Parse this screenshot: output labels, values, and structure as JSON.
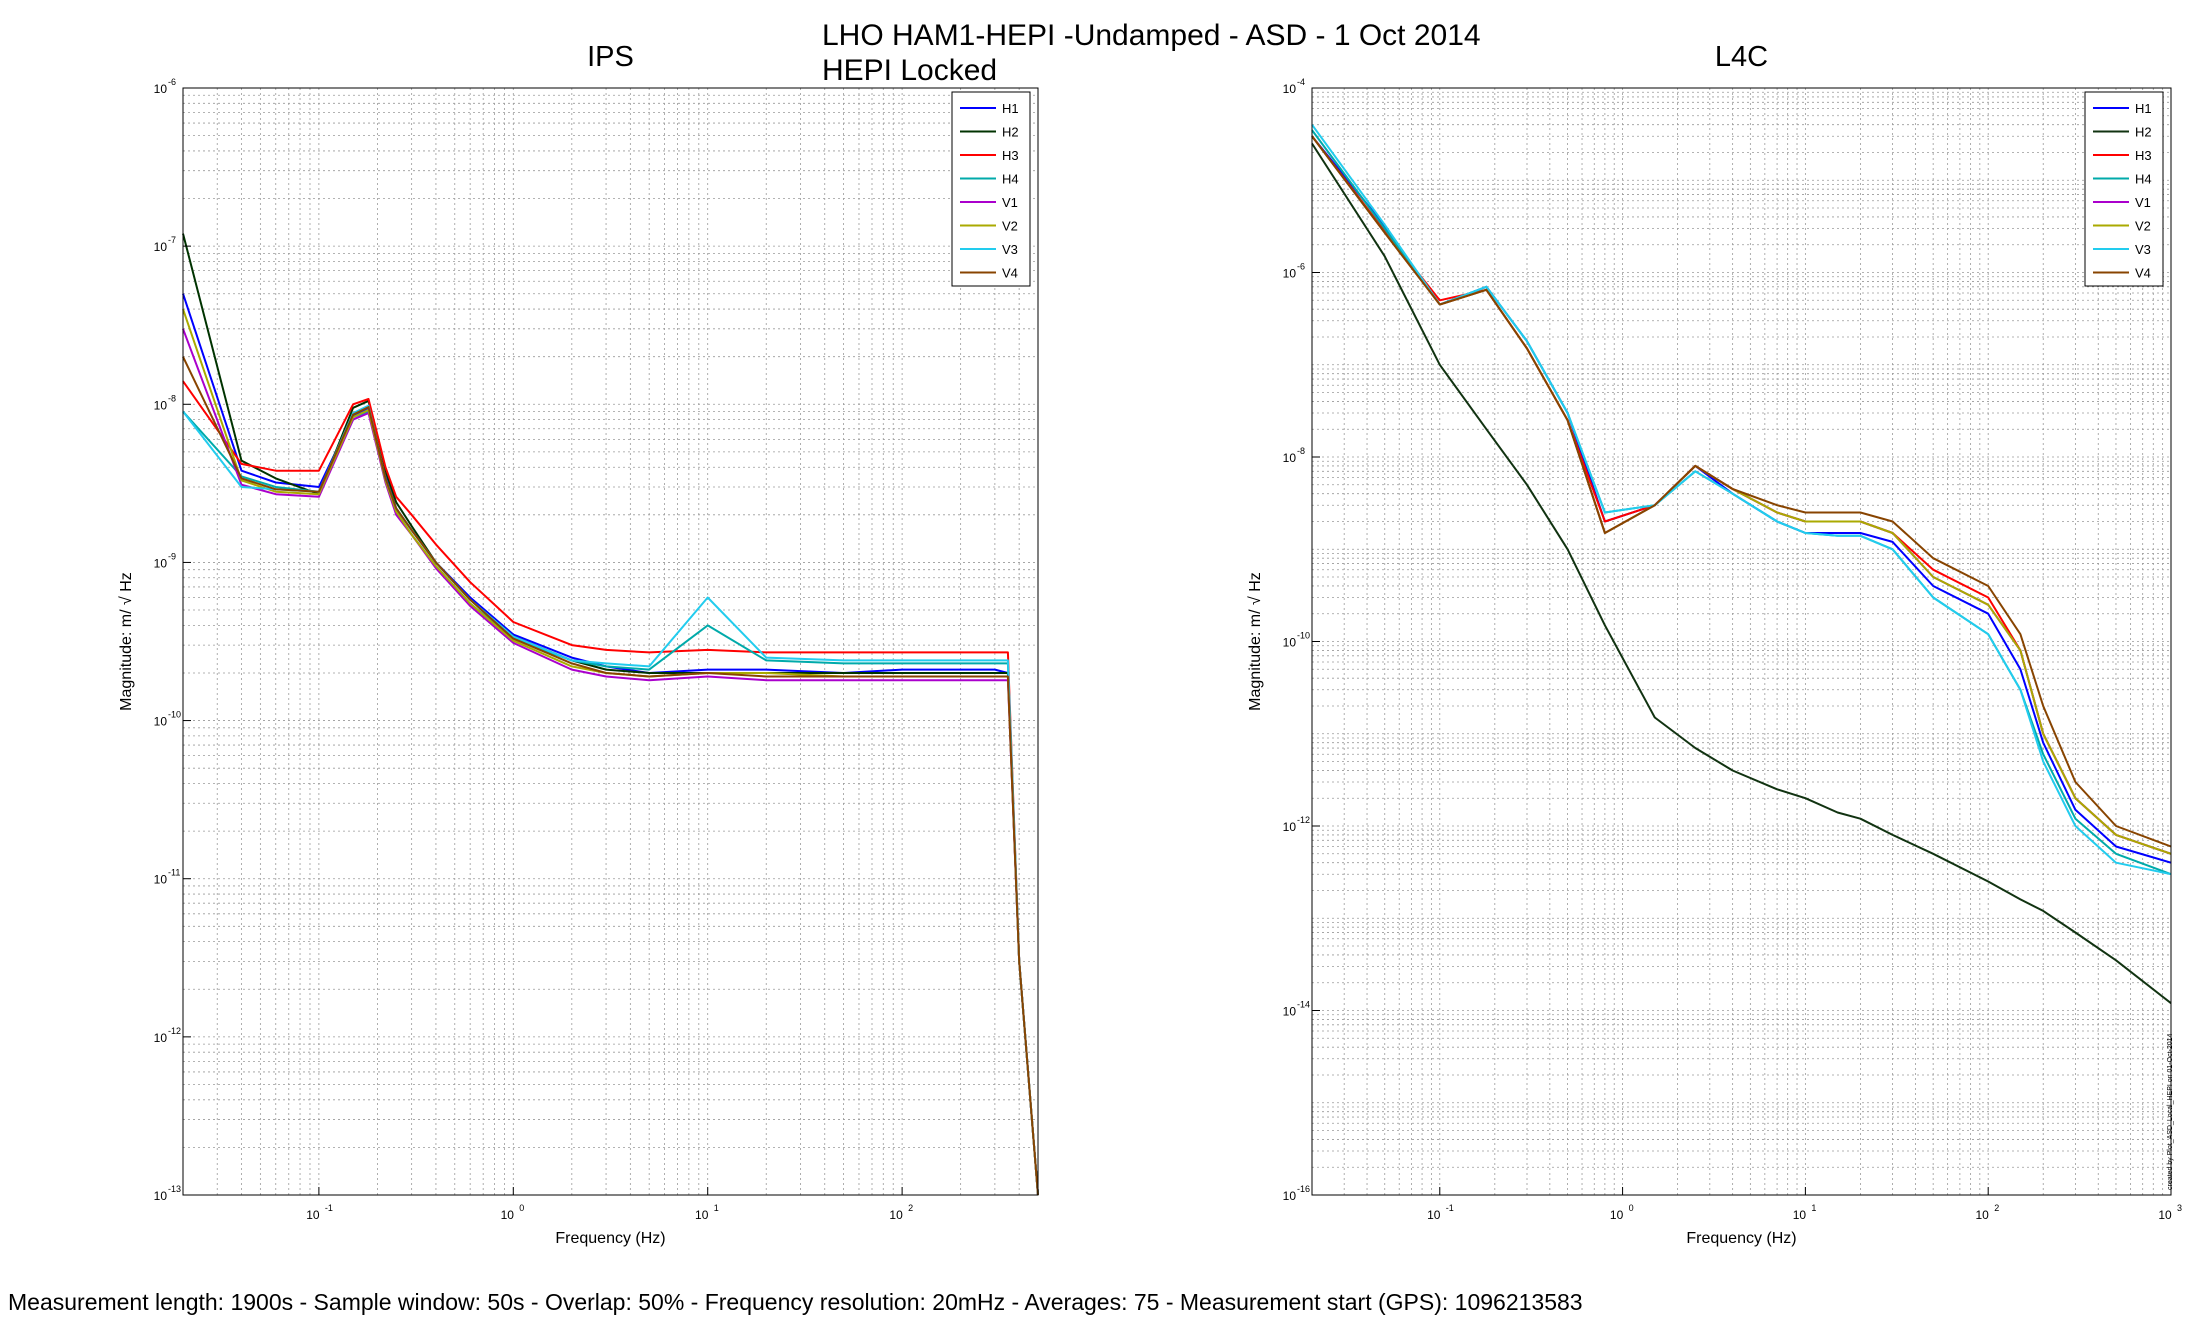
{
  "figure": {
    "title_line1": "LHO HAM1-HEPI -Undamped - ASD - 1 Oct 2014",
    "title_line2": "HEPI Locked",
    "footer": "Measurement length: 1900s - Sample window: 50s - Overlap: 50% - Frequency resolution: 20mHz - Averages: 75 - Measurement start (GPS): 1096213583",
    "side_note": "created by Plot_ASD_Local_HEPI on 01-Oct-2014"
  },
  "chart_data": [
    {
      "type": "line",
      "title": "IPS",
      "xlabel": "Frequency (Hz)",
      "ylabel": "Magnitude: m/ √ Hz",
      "xscale": "log",
      "yscale": "log",
      "xlim": [
        0.02,
        500
      ],
      "ylim": [
        1e-13,
        1e-06
      ],
      "grid": true,
      "legend_position": "top-right",
      "x": [
        0.02,
        0.04,
        0.06,
        0.1,
        0.15,
        0.18,
        0.22,
        0.25,
        0.3,
        0.4,
        0.6,
        1,
        2,
        3,
        5,
        10,
        20,
        50,
        100,
        200,
        300,
        350,
        400,
        450,
        500
      ],
      "series": [
        {
          "name": "H1",
          "color": "#0000ff",
          "values": [
            5e-08,
            3.8e-09,
            3.2e-09,
            3e-09,
            8.5e-09,
            9.5e-09,
            3.5e-09,
            2.2e-09,
            1.6e-09,
            1e-09,
            6e-10,
            3.5e-10,
            2.5e-10,
            2.2e-10,
            2e-10,
            2.1e-10,
            2.1e-10,
            2e-10,
            2.1e-10,
            2.1e-10,
            2.1e-10,
            2e-10,
            3e-12,
            5e-13,
            1e-13
          ]
        },
        {
          "name": "H2",
          "color": "#003300",
          "values": [
            1.2e-07,
            4.4e-09,
            3.4e-09,
            2.7e-09,
            9.5e-09,
            1.05e-08,
            3.8e-09,
            2.4e-09,
            1.7e-09,
            1e-09,
            5.8e-10,
            3.4e-10,
            2.4e-10,
            2.1e-10,
            2e-10,
            2e-10,
            2e-10,
            2e-10,
            2e-10,
            2e-10,
            2e-10,
            2e-10,
            3e-12,
            5e-13,
            1e-13
          ]
        },
        {
          "name": "H3",
          "color": "#ff0000",
          "values": [
            1.4e-08,
            4.2e-09,
            3.8e-09,
            3.8e-09,
            1e-08,
            1.08e-08,
            4e-09,
            2.6e-09,
            2e-09,
            1.3e-09,
            7.5e-10,
            4.2e-10,
            3e-10,
            2.8e-10,
            2.7e-10,
            2.8e-10,
            2.7e-10,
            2.7e-10,
            2.7e-10,
            2.7e-10,
            2.7e-10,
            2.7e-10,
            3e-12,
            5e-13,
            1e-13
          ]
        },
        {
          "name": "H4",
          "color": "#00aaaa",
          "values": [
            9e-09,
            3.5e-09,
            3e-09,
            2.8e-09,
            8e-09,
            9e-09,
            3.3e-09,
            2.1e-09,
            1.5e-09,
            9.5e-10,
            5.5e-10,
            3.3e-10,
            2.4e-10,
            2.2e-10,
            2.1e-10,
            4e-10,
            2.4e-10,
            2.3e-10,
            2.3e-10,
            2.3e-10,
            2.3e-10,
            2.3e-10,
            3e-12,
            5e-13,
            1e-13
          ]
        },
        {
          "name": "V1",
          "color": "#aa00cc",
          "values": [
            3e-08,
            3.1e-09,
            2.7e-09,
            2.6e-09,
            8e-09,
            8.8e-09,
            3.2e-09,
            2e-09,
            1.5e-09,
            9.2e-10,
            5.3e-10,
            3.1e-10,
            2.1e-10,
            1.9e-10,
            1.8e-10,
            1.9e-10,
            1.8e-10,
            1.8e-10,
            1.8e-10,
            1.8e-10,
            1.8e-10,
            1.8e-10,
            3e-12,
            5e-13,
            1e-13
          ]
        },
        {
          "name": "V2",
          "color": "#aaaa00",
          "values": [
            4e-08,
            3.3e-09,
            2.8e-09,
            2.7e-09,
            8.3e-09,
            9.2e-09,
            3.3e-09,
            2.1e-09,
            1.5e-09,
            9.5e-10,
            5.5e-10,
            3.2e-10,
            2.2e-10,
            2e-10,
            1.9e-10,
            2e-10,
            2e-10,
            1.9e-10,
            1.9e-10,
            1.9e-10,
            1.9e-10,
            1.9e-10,
            3e-12,
            5e-13,
            1e-13
          ]
        },
        {
          "name": "V3",
          "color": "#22ccee",
          "values": [
            9e-09,
            3e-09,
            2.9e-09,
            2.8e-09,
            8.8e-09,
            9.8e-09,
            3.4e-09,
            2.2e-09,
            1.6e-09,
            1e-09,
            5.8e-10,
            3.4e-10,
            2.4e-10,
            2.3e-10,
            2.2e-10,
            6e-10,
            2.5e-10,
            2.4e-10,
            2.4e-10,
            2.4e-10,
            2.4e-10,
            2.4e-10,
            3e-12,
            5e-13,
            1e-13
          ]
        },
        {
          "name": "V4",
          "color": "#884400",
          "values": [
            2e-08,
            3.4e-09,
            2.9e-09,
            2.8e-09,
            8.6e-09,
            9.6e-09,
            3.4e-09,
            2.2e-09,
            1.6e-09,
            1e-09,
            5.8e-10,
            3.3e-10,
            2.3e-10,
            2e-10,
            1.9e-10,
            2e-10,
            1.9e-10,
            1.9e-10,
            1.9e-10,
            1.9e-10,
            1.9e-10,
            1.9e-10,
            3e-12,
            5e-13,
            1e-13
          ]
        }
      ]
    },
    {
      "type": "line",
      "title": "L4C",
      "xlabel": "Frequency (Hz)",
      "ylabel": "Magnitude: m/ √ Hz",
      "xscale": "log",
      "yscale": "log",
      "xlim": [
        0.02,
        1000
      ],
      "ylim": [
        1e-16,
        0.0001
      ],
      "grid": true,
      "legend_position": "top-right",
      "x": [
        0.02,
        0.05,
        0.1,
        0.18,
        0.3,
        0.5,
        0.8,
        1.5,
        2.5,
        4,
        7,
        10,
        15,
        20,
        30,
        50,
        100,
        150,
        200,
        300,
        500,
        1000
      ],
      "series": [
        {
          "name": "H1",
          "color": "#0000ff",
          "values": [
            3e-05,
            3.2e-06,
            4.5e-07,
            7e-07,
            1.8e-07,
            3e-08,
            2e-09,
            3e-09,
            8e-09,
            4e-09,
            2e-09,
            1.5e-09,
            1.5e-09,
            1.5e-09,
            1.2e-09,
            4e-10,
            2e-10,
            5e-11,
            8e-12,
            1.5e-12,
            6e-13,
            4e-13
          ]
        },
        {
          "name": "H2",
          "color": "#113311",
          "values": [
            2.5e-05,
            1.5e-06,
            1e-07,
            2e-08,
            5e-09,
            1e-09,
            1.5e-10,
            1.5e-11,
            7e-12,
            4e-12,
            2.5e-12,
            2e-12,
            1.4e-12,
            1.2e-12,
            8e-13,
            5e-13,
            2.5e-13,
            1.6e-13,
            1.2e-13,
            7e-14,
            3.5e-14,
            1.2e-14
          ]
        },
        {
          "name": "H3",
          "color": "#ff0000",
          "values": [
            3e-05,
            2.8e-06,
            5e-07,
            6.5e-07,
            1.5e-07,
            2.5e-08,
            2e-09,
            3e-09,
            8e-09,
            4.5e-09,
            2.5e-09,
            2e-09,
            2e-09,
            2e-09,
            1.5e-09,
            6e-10,
            3e-10,
            8e-11,
            1e-11,
            2e-12,
            8e-13,
            5e-13
          ]
        },
        {
          "name": "H4",
          "color": "#00aaaa",
          "values": [
            3.5e-05,
            3e-06,
            4.5e-07,
            7e-07,
            1.8e-07,
            3e-08,
            2.5e-09,
            3e-09,
            7e-09,
            4e-09,
            2e-09,
            1.5e-09,
            1.4e-09,
            1.4e-09,
            1e-09,
            3e-10,
            1.2e-10,
            3e-11,
            6e-12,
            1.2e-12,
            5e-13,
            3e-13
          ]
        },
        {
          "name": "V1",
          "color": "#aa00cc",
          "values": [
            3e-05,
            2.7e-06,
            4.5e-07,
            6.5e-07,
            1.5e-07,
            2.5e-08,
            1.5e-09,
            3e-09,
            8e-09,
            4.5e-09,
            2.5e-09,
            2e-09,
            2e-09,
            2e-09,
            1.5e-09,
            5e-10,
            2.5e-10,
            8e-11,
            1e-11,
            2e-12,
            8e-13,
            5e-13
          ]
        },
        {
          "name": "V2",
          "color": "#aaaa00",
          "values": [
            3e-05,
            2.7e-06,
            4.5e-07,
            6.5e-07,
            1.5e-07,
            2.5e-08,
            1.5e-09,
            3e-09,
            8e-09,
            4.5e-09,
            2.5e-09,
            2e-09,
            2e-09,
            2e-09,
            1.5e-09,
            5e-10,
            2.5e-10,
            8e-11,
            1e-11,
            2e-12,
            8e-13,
            5e-13
          ]
        },
        {
          "name": "V3",
          "color": "#22ccee",
          "values": [
            4e-05,
            3.3e-06,
            4.5e-07,
            7e-07,
            1.8e-07,
            3e-08,
            2.5e-09,
            3e-09,
            7e-09,
            4e-09,
            2e-09,
            1.5e-09,
            1.4e-09,
            1.4e-09,
            1e-09,
            3e-10,
            1.2e-10,
            3e-11,
            5e-12,
            1e-12,
            4e-13,
            3e-13
          ]
        },
        {
          "name": "V4",
          "color": "#884400",
          "values": [
            3e-05,
            2.7e-06,
            4.5e-07,
            6.5e-07,
            1.5e-07,
            2.5e-08,
            1.5e-09,
            3e-09,
            8e-09,
            4.5e-09,
            3e-09,
            2.5e-09,
            2.5e-09,
            2.5e-09,
            2e-09,
            8e-10,
            4e-10,
            1.2e-10,
            2e-11,
            3e-12,
            1e-12,
            6e-13
          ]
        }
      ]
    }
  ]
}
